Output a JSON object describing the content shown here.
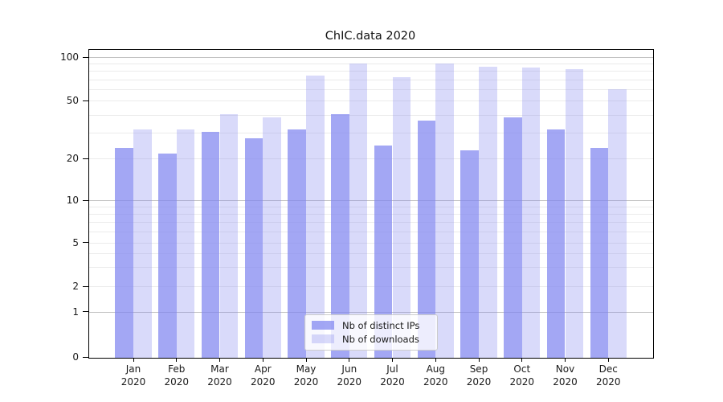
{
  "title": "ChIC.data 2020",
  "chart_data": {
    "type": "bar",
    "title": "ChIC.data 2020",
    "categories": [
      "Jan",
      "Feb",
      "Mar",
      "Apr",
      "May",
      "Jun",
      "Jul",
      "Aug",
      "Sep",
      "Oct",
      "Nov",
      "Dec"
    ],
    "year": "2020",
    "series": [
      {
        "name": "Nb of distinct IPs",
        "color": "rgba(128,133,240,0.72)",
        "values": [
          24,
          22,
          31,
          28,
          32,
          41,
          25,
          37,
          23,
          39,
          32,
          24
        ]
      },
      {
        "name": "Nb of downloads",
        "color": "rgba(128,133,240,0.30)",
        "values": [
          32,
          32,
          41,
          39,
          75,
          92,
          74,
          91,
          87,
          86,
          84,
          61
        ]
      }
    ],
    "xlabel": "",
    "ylabel": "",
    "yscale": "symlog",
    "ylim": [
      0,
      112
    ],
    "yticks": [
      100,
      50,
      20,
      10,
      5,
      2,
      1,
      0
    ],
    "major_gridline_values": [
      1,
      10,
      100
    ],
    "minor_gridline_values": [
      2,
      3,
      4,
      5,
      6,
      7,
      8,
      9,
      20,
      30,
      40,
      50,
      60,
      70,
      80,
      90
    ],
    "grid": "on",
    "legend_position": "lower center",
    "colors": {
      "bar_base": "#8085f0",
      "major_grid": "#c2c2c2",
      "minor_grid": "#ebebeb",
      "spine": "#000000",
      "text": "#1a1a1a"
    }
  }
}
